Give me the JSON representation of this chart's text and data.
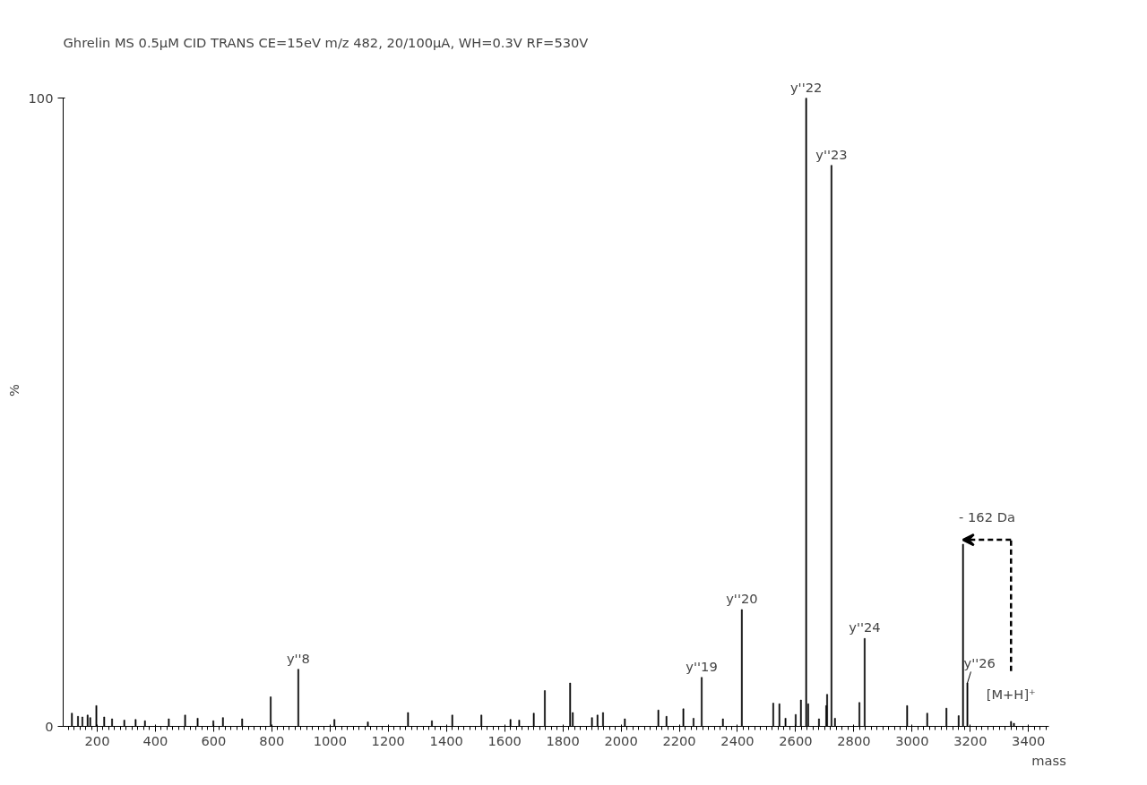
{
  "chart_data": {
    "type": "bar",
    "title": "Ghrelin MS 0.5µM CID TRANS CE=15eV m/z 482, 20/100µA, WH=0.3V RF=530V",
    "xlabel": "mass",
    "ylabel": "%",
    "x": [
      113,
      134,
      149,
      167,
      176,
      197,
      224,
      251,
      293,
      332,
      364,
      446,
      502,
      545,
      599,
      632,
      698,
      796,
      891,
      1015,
      1130,
      1268,
      1350,
      1420,
      1520,
      1620,
      1650,
      1700,
      1738,
      1825,
      1834,
      1900,
      1919,
      1938,
      2013,
      2128,
      2156,
      2214,
      2249,
      2277,
      2350,
      2415,
      2523,
      2544,
      2565,
      2600,
      2618,
      2636,
      2643,
      2680,
      2705,
      2708,
      2723,
      2735,
      2819,
      2837,
      2983,
      3052,
      3118,
      3160,
      3175,
      3190,
      3340,
      3350
    ],
    "values": [
      2.1,
      1.6,
      1.5,
      1.8,
      1.4,
      3.3,
      1.5,
      1.2,
      1.0,
      1.1,
      0.9,
      1.2,
      1.8,
      1.3,
      0.9,
      1.4,
      1.2,
      4.7,
      9.1,
      1.1,
      0.7,
      2.2,
      0.9,
      1.8,
      1.8,
      1.1,
      1.0,
      2.1,
      5.7,
      6.9,
      2.2,
      1.4,
      1.8,
      2.2,
      1.2,
      2.6,
      1.6,
      2.8,
      1.3,
      7.8,
      1.2,
      18.6,
      3.7,
      3.6,
      1.3,
      1.9,
      4.2,
      100,
      3.6,
      1.2,
      3.3,
      5.1,
      89.3,
      1.3,
      3.8,
      14.0,
      3.3,
      2.1,
      2.9,
      1.7,
      29.0,
      6.9,
      0.8,
      0.5
    ],
    "color": "#000000",
    "xlim": [
      83,
      3470
    ],
    "xticks": [
      200,
      400,
      600,
      800,
      1000,
      1200,
      1400,
      1600,
      1800,
      2000,
      2200,
      2400,
      2600,
      2800,
      3000,
      3200,
      3400
    ],
    "ylim": [
      0,
      100
    ],
    "yticks": [
      0,
      100
    ],
    "grid": false,
    "annotations": [
      {
        "text": "y''8",
        "x": 891,
        "y": 9.1
      },
      {
        "text": "y''19",
        "x": 2277,
        "y": 7.8
      },
      {
        "text": "y''20",
        "x": 2415,
        "y": 18.6
      },
      {
        "text": "y''22",
        "x": 2636,
        "y": 100
      },
      {
        "text": "y''23",
        "x": 2723,
        "y": 89.3
      },
      {
        "text": "y''24",
        "x": 2837,
        "y": 14.0
      },
      {
        "text": "y''26",
        "x": 3190,
        "y": 6.9
      },
      {
        "text": "- 162 Da",
        "x": 3175,
        "y": 29.0
      },
      {
        "text": "[M+H]⁺",
        "x": 3340,
        "y": 0.8
      }
    ]
  }
}
